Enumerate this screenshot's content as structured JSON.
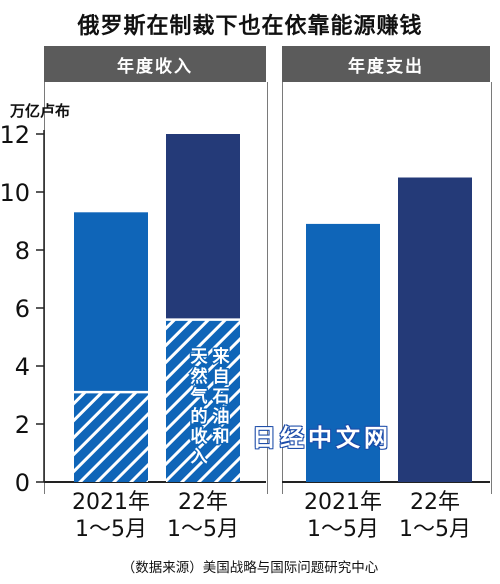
{
  "title": "俄罗斯在制裁下也在依靠能源赚钱",
  "source": "（数据来源）美国战略与国际问题研究中心",
  "watermark": "日经中文网",
  "unit": "万亿卢布",
  "colors": {
    "bright_blue": "#0f65b8",
    "navy": "#243a78",
    "header_gray": "#5b5b5b",
    "axis": "#222222"
  },
  "chart_data": [
    {
      "type": "bar",
      "title": "年度收入",
      "ylabel": "万亿卢布",
      "ylim": [
        0,
        12
      ],
      "yticks": [
        0,
        2,
        4,
        6,
        8,
        10,
        12
      ],
      "categories": [
        [
          "2021年",
          "1～5月"
        ],
        [
          "22年",
          "1～5月"
        ]
      ],
      "values": [
        9.3,
        12.0
      ],
      "energy_share": [
        3.1,
        5.6
      ],
      "annotation": "来自石油和天然气的收入"
    },
    {
      "type": "bar",
      "title": "年度支出",
      "ylim": [
        0,
        12
      ],
      "categories": [
        [
          "2021年",
          "1～5月"
        ],
        [
          "22年",
          "1～5月"
        ]
      ],
      "values": [
        8.9,
        10.5
      ]
    }
  ]
}
